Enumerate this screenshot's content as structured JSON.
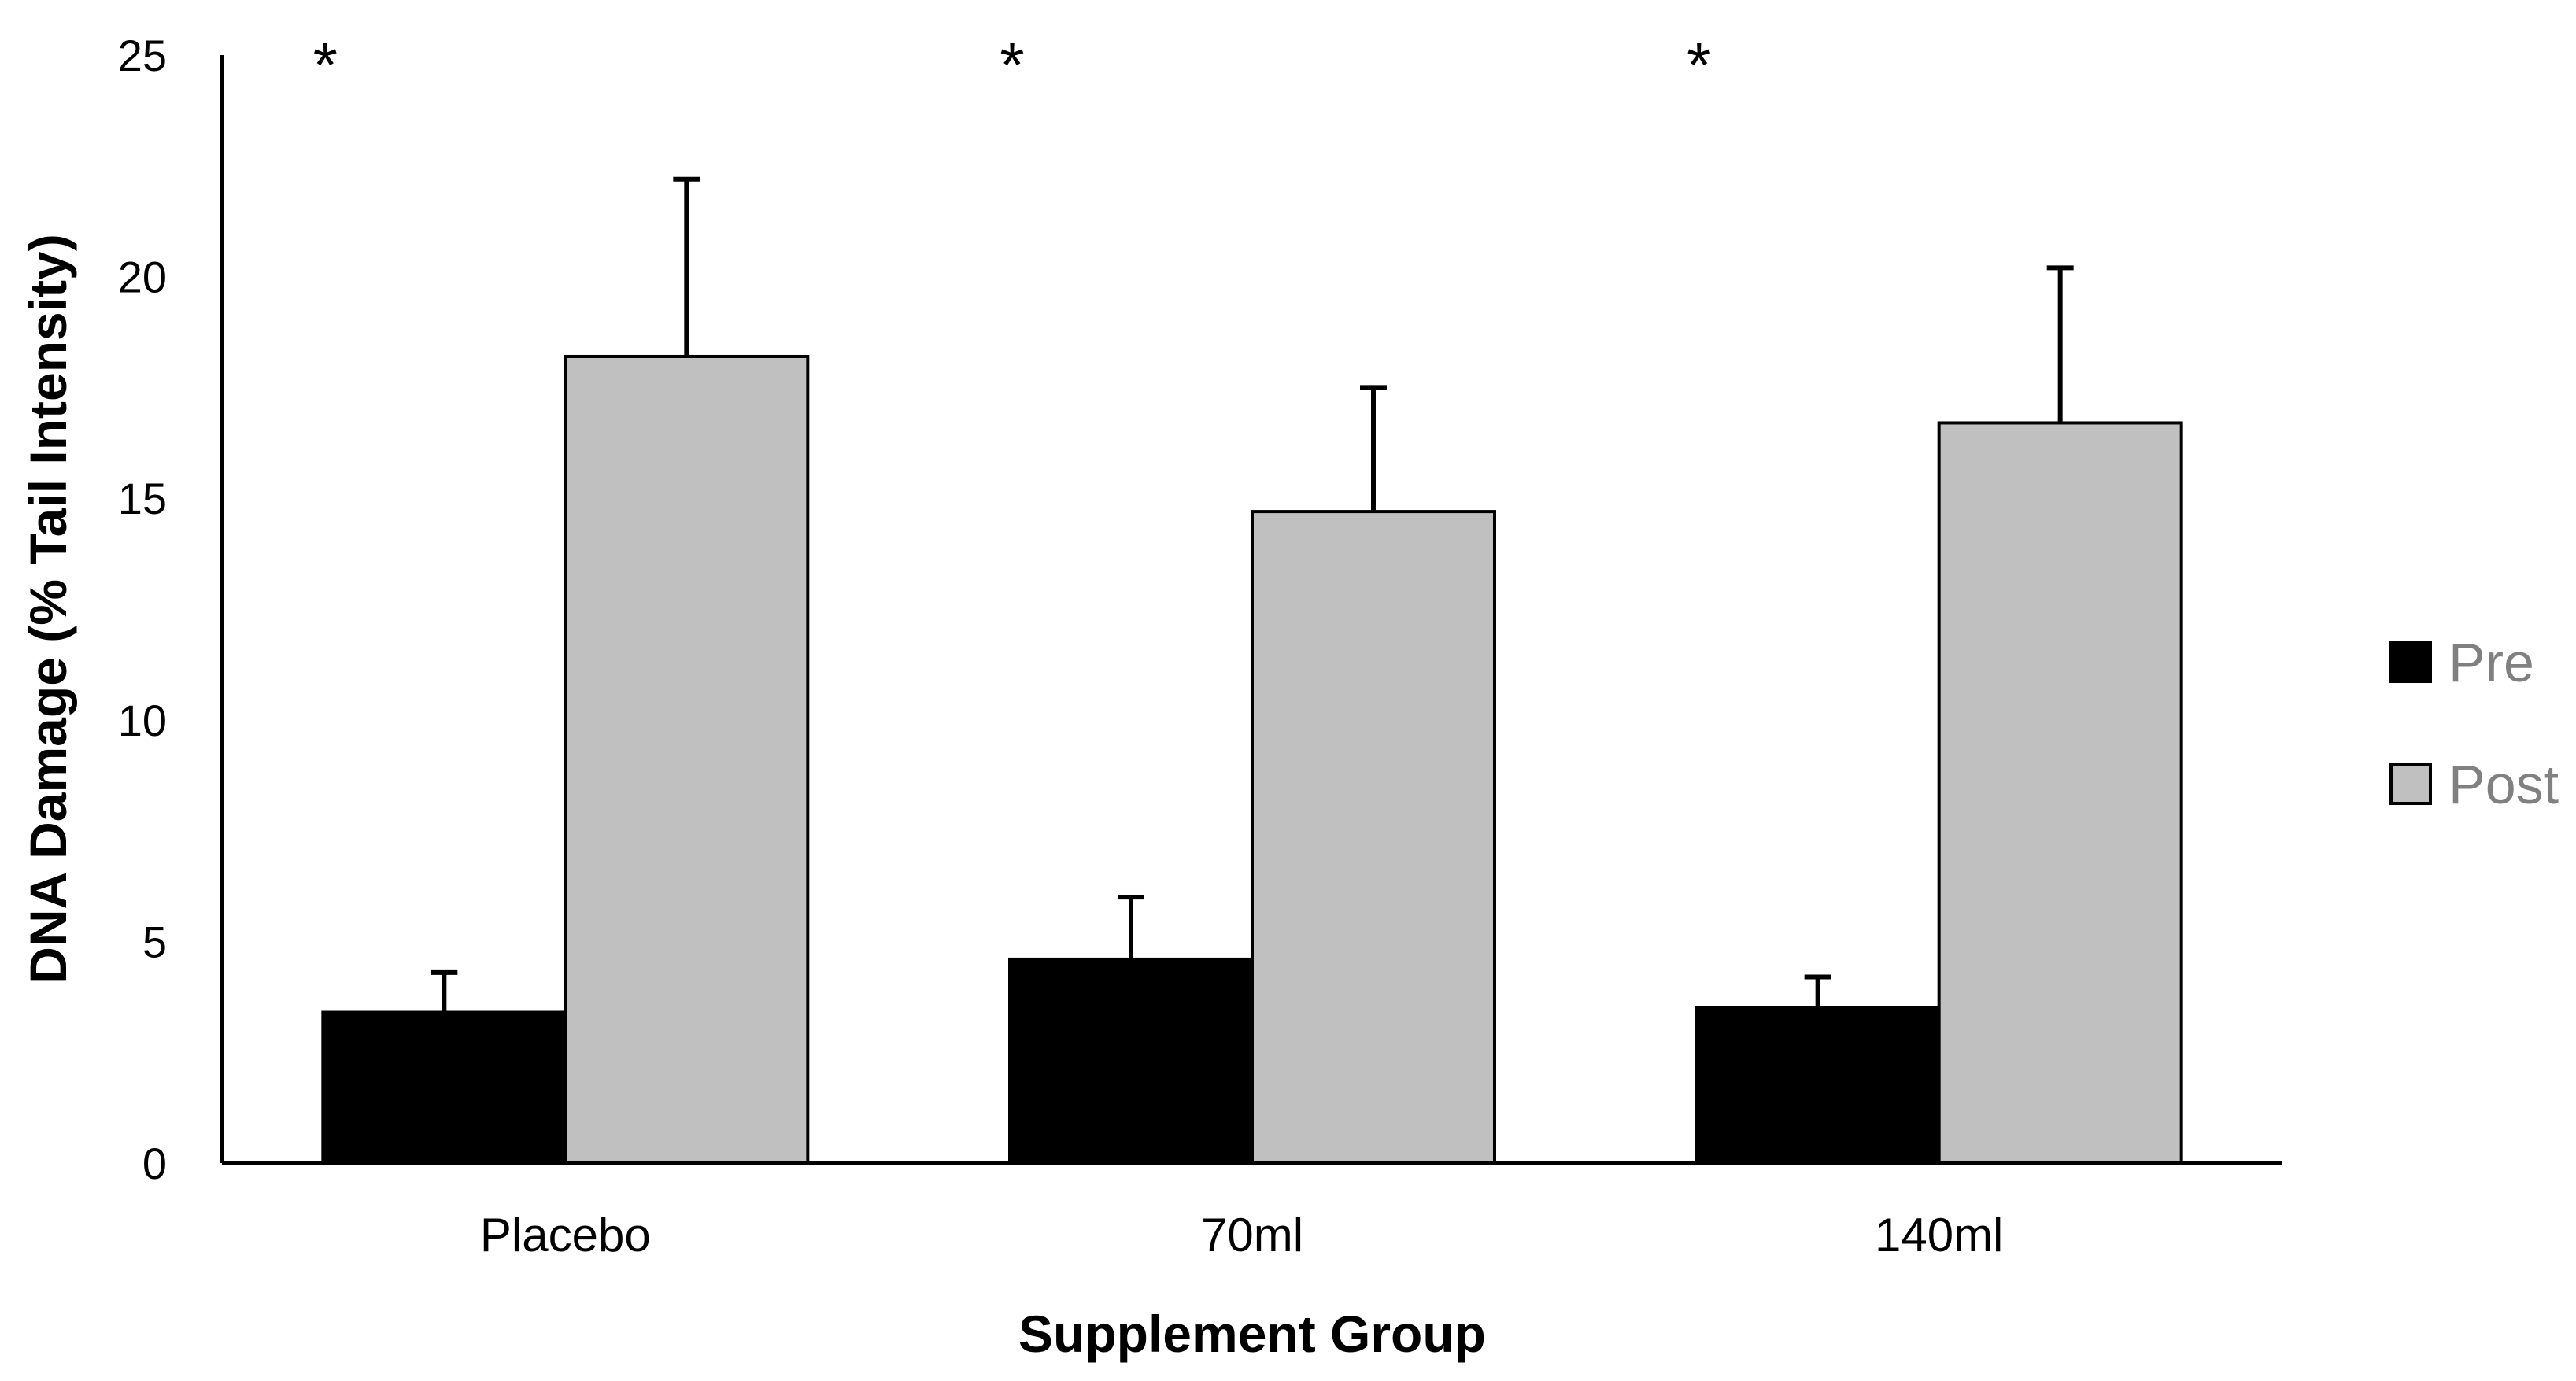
{
  "chart_data": {
    "type": "bar",
    "title": "",
    "xlabel": "Supplement Group",
    "ylabel": "DNA Damage (% Tail Intensity)",
    "ylim": [
      0,
      25
    ],
    "yticks": [
      0,
      5,
      10,
      15,
      20,
      25
    ],
    "categories": [
      "Placebo",
      "70ml",
      "140ml"
    ],
    "series": [
      {
        "name": "Pre",
        "color": "#000000",
        "values": [
          3.4,
          4.6,
          3.5
        ],
        "errors": [
          0.9,
          1.4,
          0.7
        ]
      },
      {
        "name": "Post",
        "color": "#c0c0c0",
        "values": [
          18.2,
          14.7,
          16.7
        ],
        "errors": [
          4.0,
          2.8,
          3.5
        ]
      }
    ],
    "annotations": [
      "*",
      "*",
      "*"
    ],
    "legend_position": "right"
  }
}
